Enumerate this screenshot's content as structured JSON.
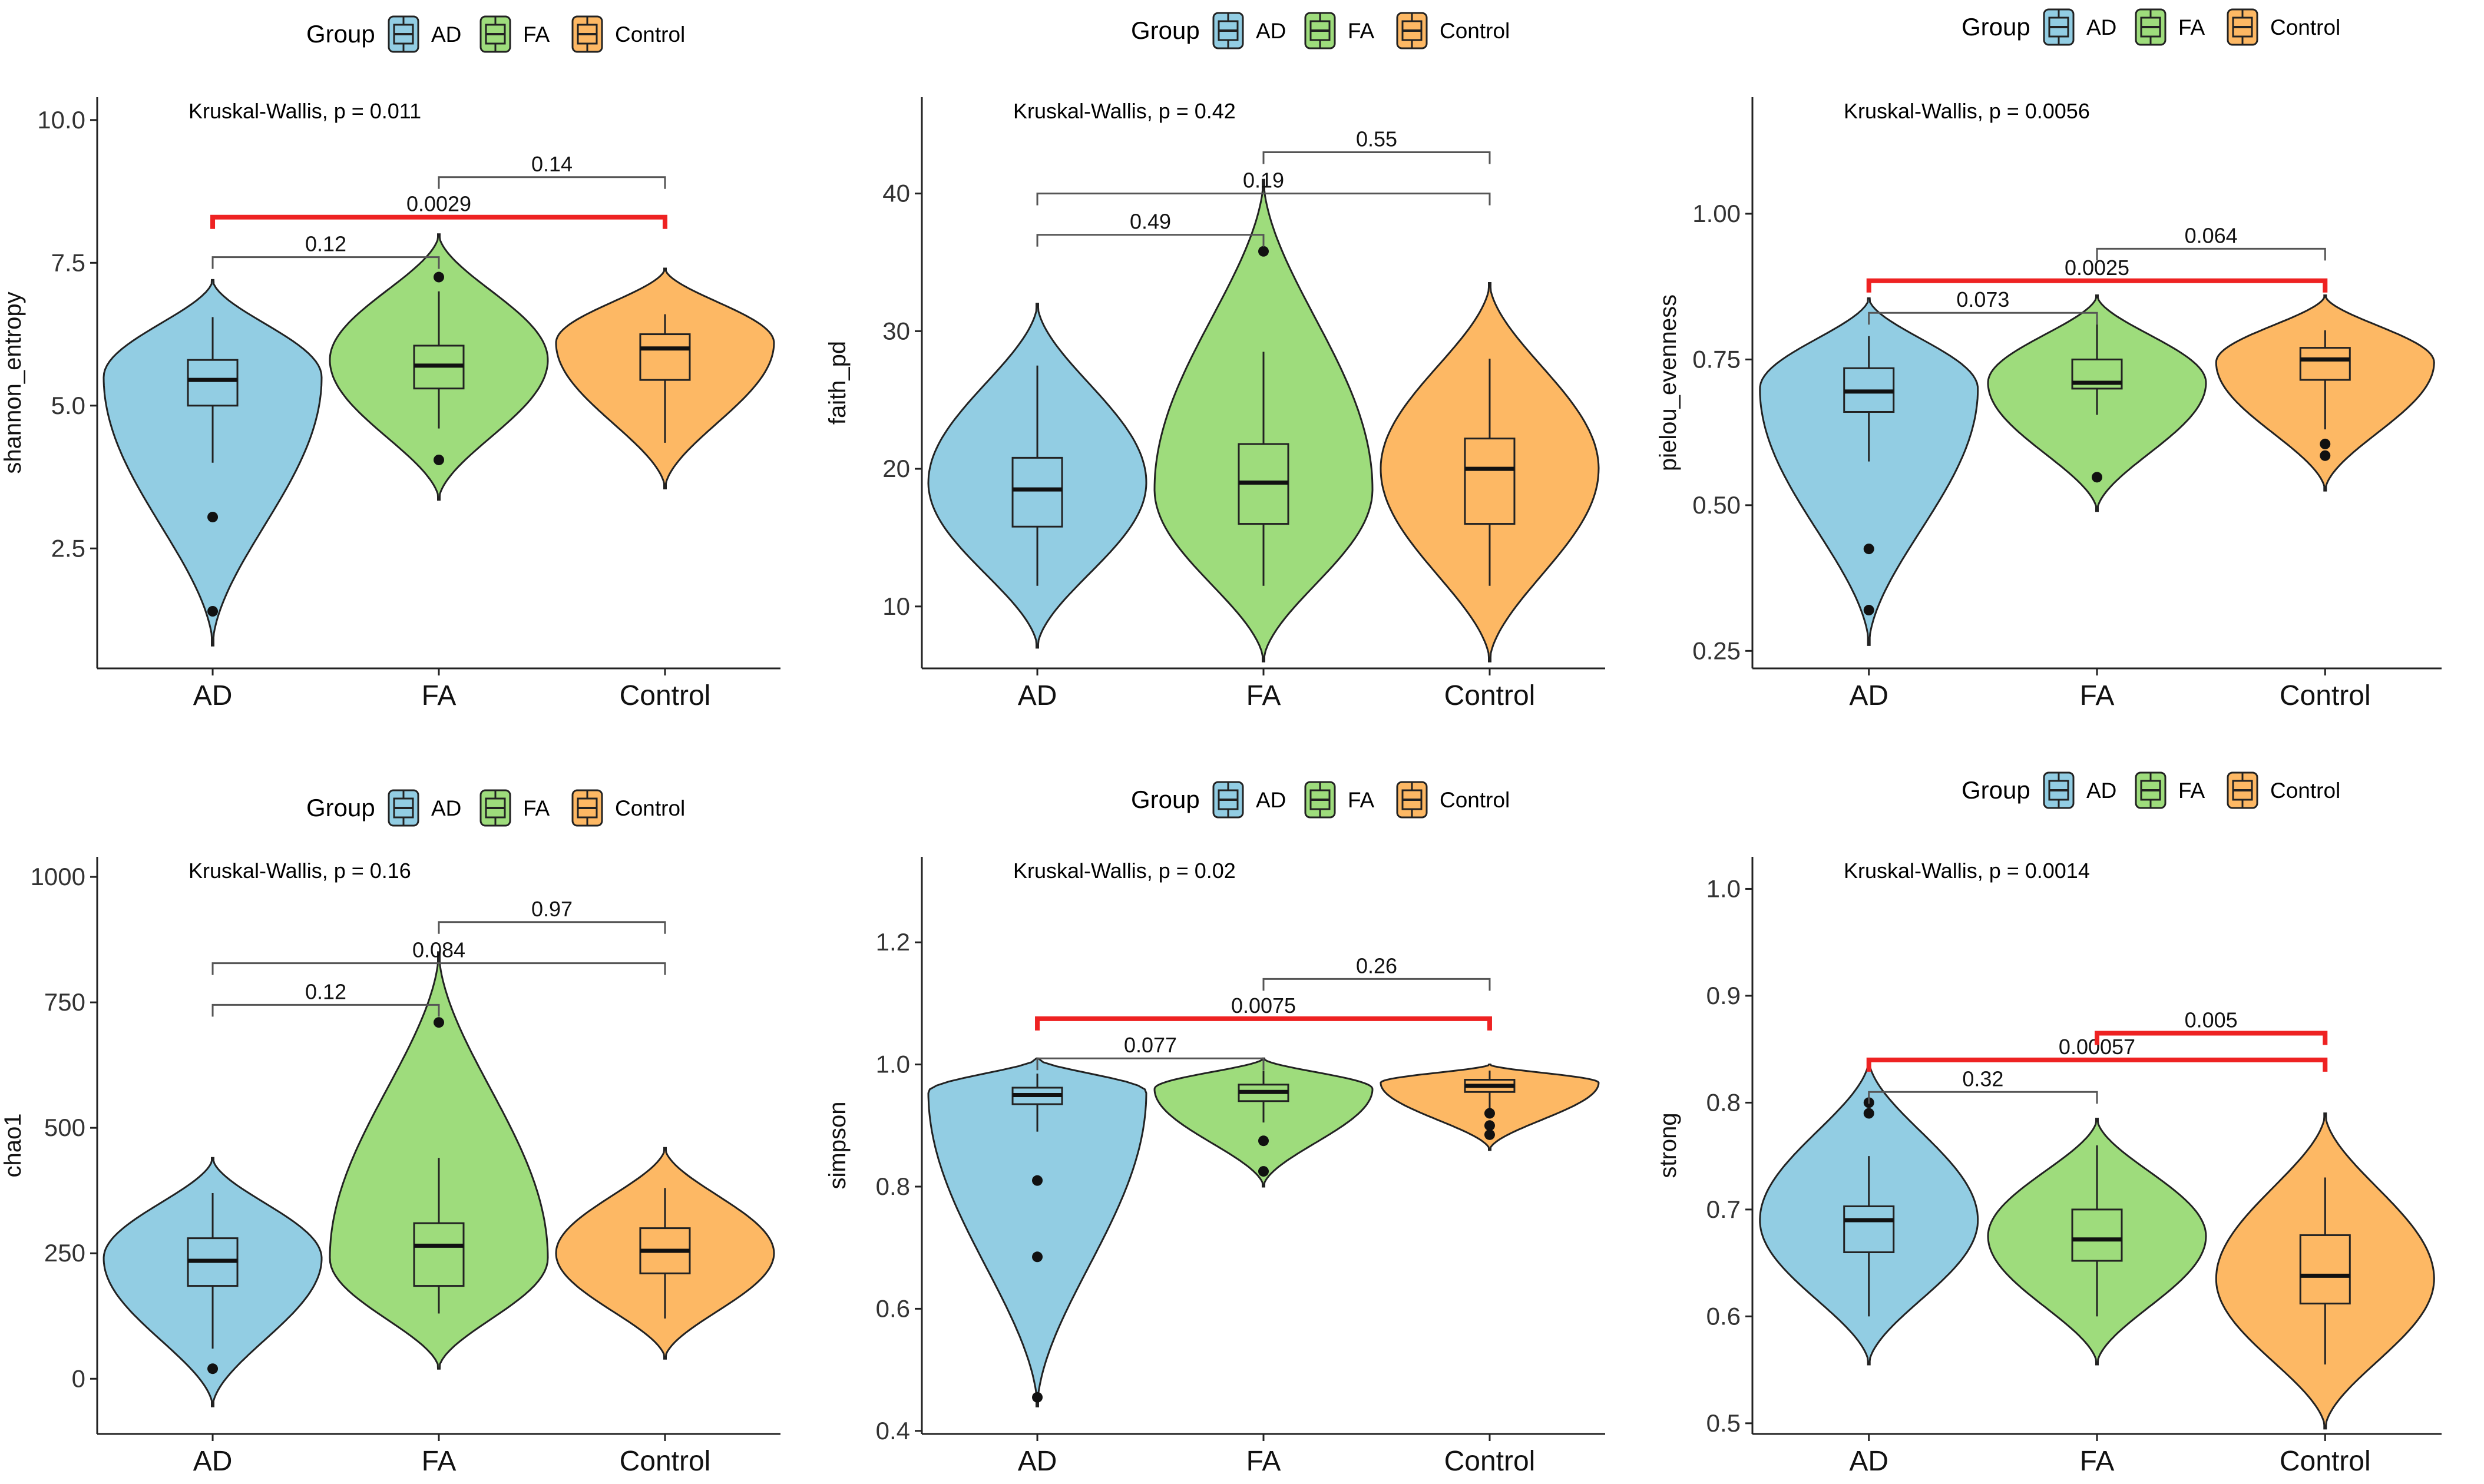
{
  "colors": {
    "AD": "#92CDE3",
    "FA": "#9EDC7C",
    "Control": "#FDB864",
    "sig": "#EE2222",
    "bracket": "#555555"
  },
  "chart_data": [
    {
      "type": "violin",
      "ylabel": "shannon_entropy",
      "ylim": [
        0.4,
        10.4
      ],
      "yticks": [
        2.5,
        5.0,
        7.5,
        10.0
      ],
      "ytick_labels": [
        "2.5",
        "5.0",
        "7.5",
        "10.0"
      ],
      "categories": [
        "AD",
        "FA",
        "Control"
      ],
      "legend": {
        "title": "Group",
        "entries": [
          "AD",
          "FA",
          "Control"
        ]
      },
      "test_label": "Kruskal-Wallis, p = 0.011",
      "groups": [
        {
          "name": "AD",
          "violin_min": 0.8,
          "violin_max": 7.2,
          "mode": 5.5,
          "box": [
            4.0,
            5.0,
            5.45,
            5.8,
            6.55
          ],
          "outliers": [
            3.05,
            1.4
          ]
        },
        {
          "name": "FA",
          "violin_min": 3.35,
          "violin_max": 8.0,
          "mode": 5.8,
          "box": [
            4.6,
            5.3,
            5.7,
            6.05,
            7.0
          ],
          "outliers": [
            7.25,
            4.05
          ]
        },
        {
          "name": "Control",
          "violin_min": 3.55,
          "violin_max": 7.4,
          "mode": 6.1,
          "box": [
            4.35,
            5.45,
            6.0,
            6.25,
            6.6
          ],
          "outliers": []
        }
      ],
      "comparisons": [
        {
          "from": "AD",
          "to": "FA",
          "label": "0.12",
          "level": 7.6,
          "significant": false
        },
        {
          "from": "AD",
          "to": "Control",
          "label": "0.0029",
          "level": 8.3,
          "significant": true
        },
        {
          "from": "FA",
          "to": "Control",
          "label": "0.14",
          "level": 9.0,
          "significant": false
        }
      ]
    },
    {
      "type": "violin",
      "ylabel": "faith_pd",
      "ylim": [
        5.5,
        47.0
      ],
      "yticks": [
        10,
        20,
        30,
        40
      ],
      "ytick_labels": [
        "10",
        "20",
        "30",
        "40"
      ],
      "categories": [
        "AD",
        "FA",
        "Control"
      ],
      "legend": {
        "title": "Group",
        "entries": [
          "AD",
          "FA",
          "Control"
        ]
      },
      "test_label": "Kruskal-Wallis, p = 0.42",
      "groups": [
        {
          "name": "AD",
          "violin_min": 7.0,
          "violin_max": 32.0,
          "mode": 19.0,
          "box": [
            11.5,
            15.8,
            18.5,
            20.8,
            27.5
          ],
          "outliers": []
        },
        {
          "name": "FA",
          "violin_min": 6.0,
          "violin_max": 41.0,
          "mode": 18.5,
          "box": [
            11.5,
            16.0,
            19.0,
            21.8,
            28.5
          ],
          "outliers": [
            35.8
          ]
        },
        {
          "name": "Control",
          "violin_min": 6.0,
          "violin_max": 33.5,
          "mode": 20.0,
          "box": [
            11.5,
            16.0,
            20.0,
            22.2,
            28.0
          ],
          "outliers": []
        }
      ],
      "comparisons": [
        {
          "from": "AD",
          "to": "FA",
          "label": "0.49",
          "level": 37.0,
          "significant": false
        },
        {
          "from": "AD",
          "to": "Control",
          "label": "0.19",
          "level": 40.0,
          "significant": false
        },
        {
          "from": "FA",
          "to": "Control",
          "label": "0.55",
          "level": 43.0,
          "significant": false
        }
      ]
    },
    {
      "type": "violin",
      "ylabel": "pielou_evenness",
      "ylim": [
        0.22,
        1.2
      ],
      "yticks": [
        0.25,
        0.5,
        0.75,
        1.0
      ],
      "ytick_labels": [
        "0.25",
        "0.50",
        "0.75",
        "1.00"
      ],
      "categories": [
        "AD",
        "FA",
        "Control"
      ],
      "legend": {
        "title": "Group",
        "entries": [
          "AD",
          "FA",
          "Control"
        ]
      },
      "test_label": "Kruskal-Wallis, p = 0.0056",
      "groups": [
        {
          "name": "AD",
          "violin_min": 0.26,
          "violin_max": 0.855,
          "mode": 0.7,
          "box": [
            0.575,
            0.66,
            0.695,
            0.735,
            0.79
          ],
          "outliers": [
            0.425,
            0.32
          ]
        },
        {
          "name": "FA",
          "violin_min": 0.49,
          "violin_max": 0.86,
          "mode": 0.71,
          "box": [
            0.655,
            0.7,
            0.71,
            0.75,
            0.82
          ],
          "outliers": [
            0.548
          ]
        },
        {
          "name": "Control",
          "violin_min": 0.525,
          "violin_max": 0.86,
          "mode": 0.745,
          "box": [
            0.63,
            0.715,
            0.75,
            0.77,
            0.8
          ],
          "outliers": [
            0.605,
            0.585
          ]
        }
      ],
      "comparisons": [
        {
          "from": "AD",
          "to": "FA",
          "label": "0.073",
          "level": 0.83,
          "significant": false
        },
        {
          "from": "AD",
          "to": "Control",
          "label": "0.0025",
          "level": 0.885,
          "significant": true
        },
        {
          "from": "FA",
          "to": "Control",
          "label": "0.064",
          "level": 0.94,
          "significant": false
        }
      ]
    },
    {
      "type": "violin",
      "ylabel": "chao1",
      "ylim": [
        -110,
        1040
      ],
      "yticks": [
        0,
        250,
        500,
        750,
        1000
      ],
      "ytick_labels": [
        "0",
        "250",
        "500",
        "750",
        "1000"
      ],
      "categories": [
        "AD",
        "FA",
        "Control"
      ],
      "legend": {
        "title": "Group",
        "entries": [
          "AD",
          "FA",
          "Control"
        ]
      },
      "test_label": "Kruskal-Wallis, p = 0.16",
      "groups": [
        {
          "name": "AD",
          "violin_min": -55,
          "violin_max": 440,
          "mode": 240,
          "box": [
            60,
            185,
            235,
            280,
            370
          ],
          "outliers": [
            20
          ]
        },
        {
          "name": "FA",
          "violin_min": 20,
          "violin_max": 850,
          "mode": 240,
          "box": [
            130,
            185,
            265,
            310,
            440
          ],
          "outliers": [
            710
          ]
        },
        {
          "name": "Control",
          "violin_min": 40,
          "violin_max": 460,
          "mode": 250,
          "box": [
            120,
            210,
            255,
            300,
            380
          ],
          "outliers": []
        }
      ],
      "comparisons": [
        {
          "from": "AD",
          "to": "FA",
          "label": "0.12",
          "level": 745,
          "significant": false
        },
        {
          "from": "AD",
          "to": "Control",
          "label": "0.084",
          "level": 828,
          "significant": false
        },
        {
          "from": "FA",
          "to": "Control",
          "label": "0.97",
          "level": 910,
          "significant": false
        }
      ]
    },
    {
      "type": "violin",
      "ylabel": "simpson",
      "ylim": [
        0.395,
        1.34
      ],
      "yticks": [
        0.4,
        0.6,
        0.8,
        1.0,
        1.2
      ],
      "ytick_labels": [
        "0.4",
        "0.6",
        "0.8",
        "1.0",
        "1.2"
      ],
      "categories": [
        "AD",
        "FA",
        "Control"
      ],
      "legend": {
        "title": "Group",
        "entries": [
          "AD",
          "FA",
          "Control"
        ]
      },
      "test_label": "Kruskal-Wallis, p = 0.02",
      "groups": [
        {
          "name": "AD",
          "violin_min": 0.44,
          "violin_max": 1.01,
          "mode": 0.955,
          "box": [
            0.89,
            0.935,
            0.95,
            0.962,
            0.985
          ],
          "outliers": [
            0.81,
            0.685,
            0.455
          ]
        },
        {
          "name": "FA",
          "violin_min": 0.8,
          "violin_max": 1.01,
          "mode": 0.96,
          "box": [
            0.905,
            0.94,
            0.955,
            0.967,
            0.99
          ],
          "outliers": [
            0.875,
            0.825
          ]
        },
        {
          "name": "Control",
          "violin_min": 0.86,
          "violin_max": 1.0,
          "mode": 0.97,
          "box": [
            0.925,
            0.955,
            0.965,
            0.975,
            0.99
          ],
          "outliers": [
            0.92,
            0.9,
            0.885
          ]
        }
      ],
      "comparisons": [
        {
          "from": "AD",
          "to": "FA",
          "label": "0.077",
          "level": 1.01,
          "significant": false
        },
        {
          "from": "AD",
          "to": "Control",
          "label": "0.0075",
          "level": 1.075,
          "significant": true
        },
        {
          "from": "FA",
          "to": "Control",
          "label": "0.26",
          "level": 1.14,
          "significant": false
        }
      ]
    },
    {
      "type": "violin",
      "ylabel": "strong",
      "ylim": [
        0.49,
        1.03
      ],
      "yticks": [
        0.5,
        0.6,
        0.7,
        0.8,
        0.9,
        1.0
      ],
      "ytick_labels": [
        "0.5",
        "0.6",
        "0.7",
        "0.8",
        "0.9",
        "1.0"
      ],
      "categories": [
        "AD",
        "FA",
        "Control"
      ],
      "legend": {
        "title": "Group",
        "entries": [
          "AD",
          "FA",
          "Control"
        ]
      },
      "test_label": "Kruskal-Wallis, p = 0.0014",
      "groups": [
        {
          "name": "AD",
          "violin_min": 0.555,
          "violin_max": 0.84,
          "mode": 0.69,
          "box": [
            0.6,
            0.66,
            0.69,
            0.703,
            0.75
          ],
          "outliers": [
            0.8,
            0.79
          ]
        },
        {
          "name": "FA",
          "violin_min": 0.555,
          "violin_max": 0.785,
          "mode": 0.675,
          "box": [
            0.6,
            0.652,
            0.672,
            0.7,
            0.76
          ],
          "outliers": []
        },
        {
          "name": "Control",
          "violin_min": 0.495,
          "violin_max": 0.79,
          "mode": 0.635,
          "box": [
            0.555,
            0.612,
            0.638,
            0.676,
            0.73
          ],
          "outliers": []
        }
      ],
      "comparisons": [
        {
          "from": "AD",
          "to": "FA",
          "label": "0.32",
          "level": 0.81,
          "significant": false
        },
        {
          "from": "AD",
          "to": "Control",
          "label": "0.00057",
          "level": 0.84,
          "significant": true
        },
        {
          "from": "FA",
          "to": "Control",
          "label": "0.005",
          "level": 0.865,
          "significant": true
        }
      ]
    }
  ]
}
